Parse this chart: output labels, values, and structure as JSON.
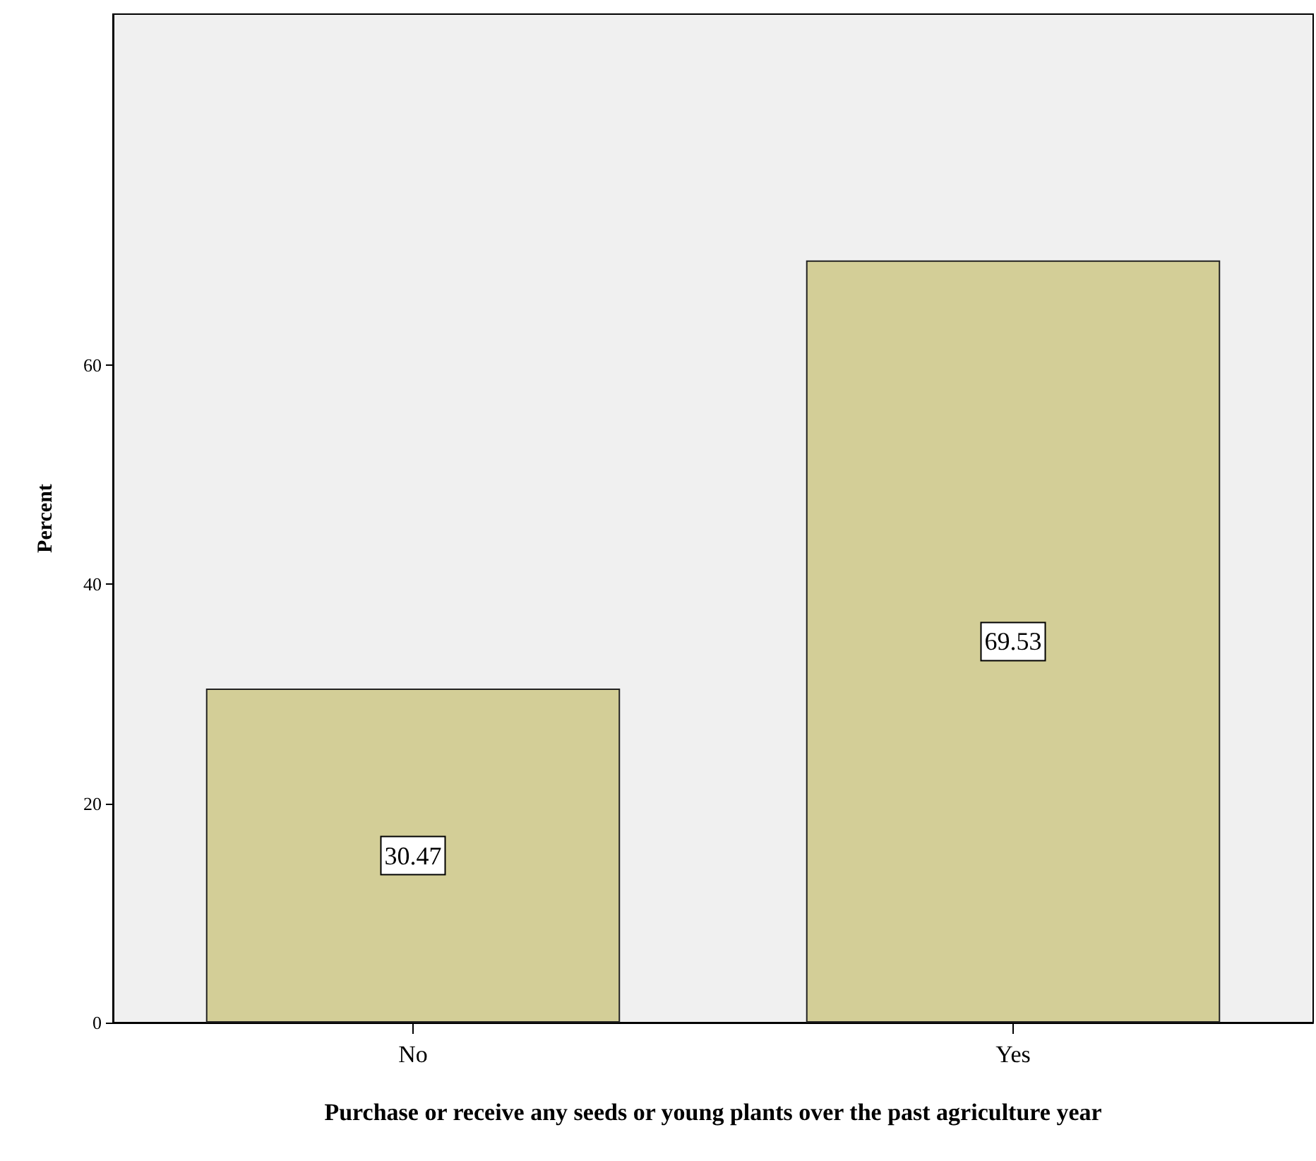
{
  "chart_data": {
    "type": "bar",
    "xlabel": "Purchase or receive any seeds or young plants over the past agriculture year",
    "ylabel": "Percent",
    "categories": [
      "No",
      "Yes"
    ],
    "values": [
      30.47,
      69.53
    ],
    "color": "#d3ce97",
    "ylim": [
      0,
      92
    ],
    "yticks": [
      0,
      20,
      40,
      60
    ],
    "grid": false,
    "data_labels": true
  }
}
